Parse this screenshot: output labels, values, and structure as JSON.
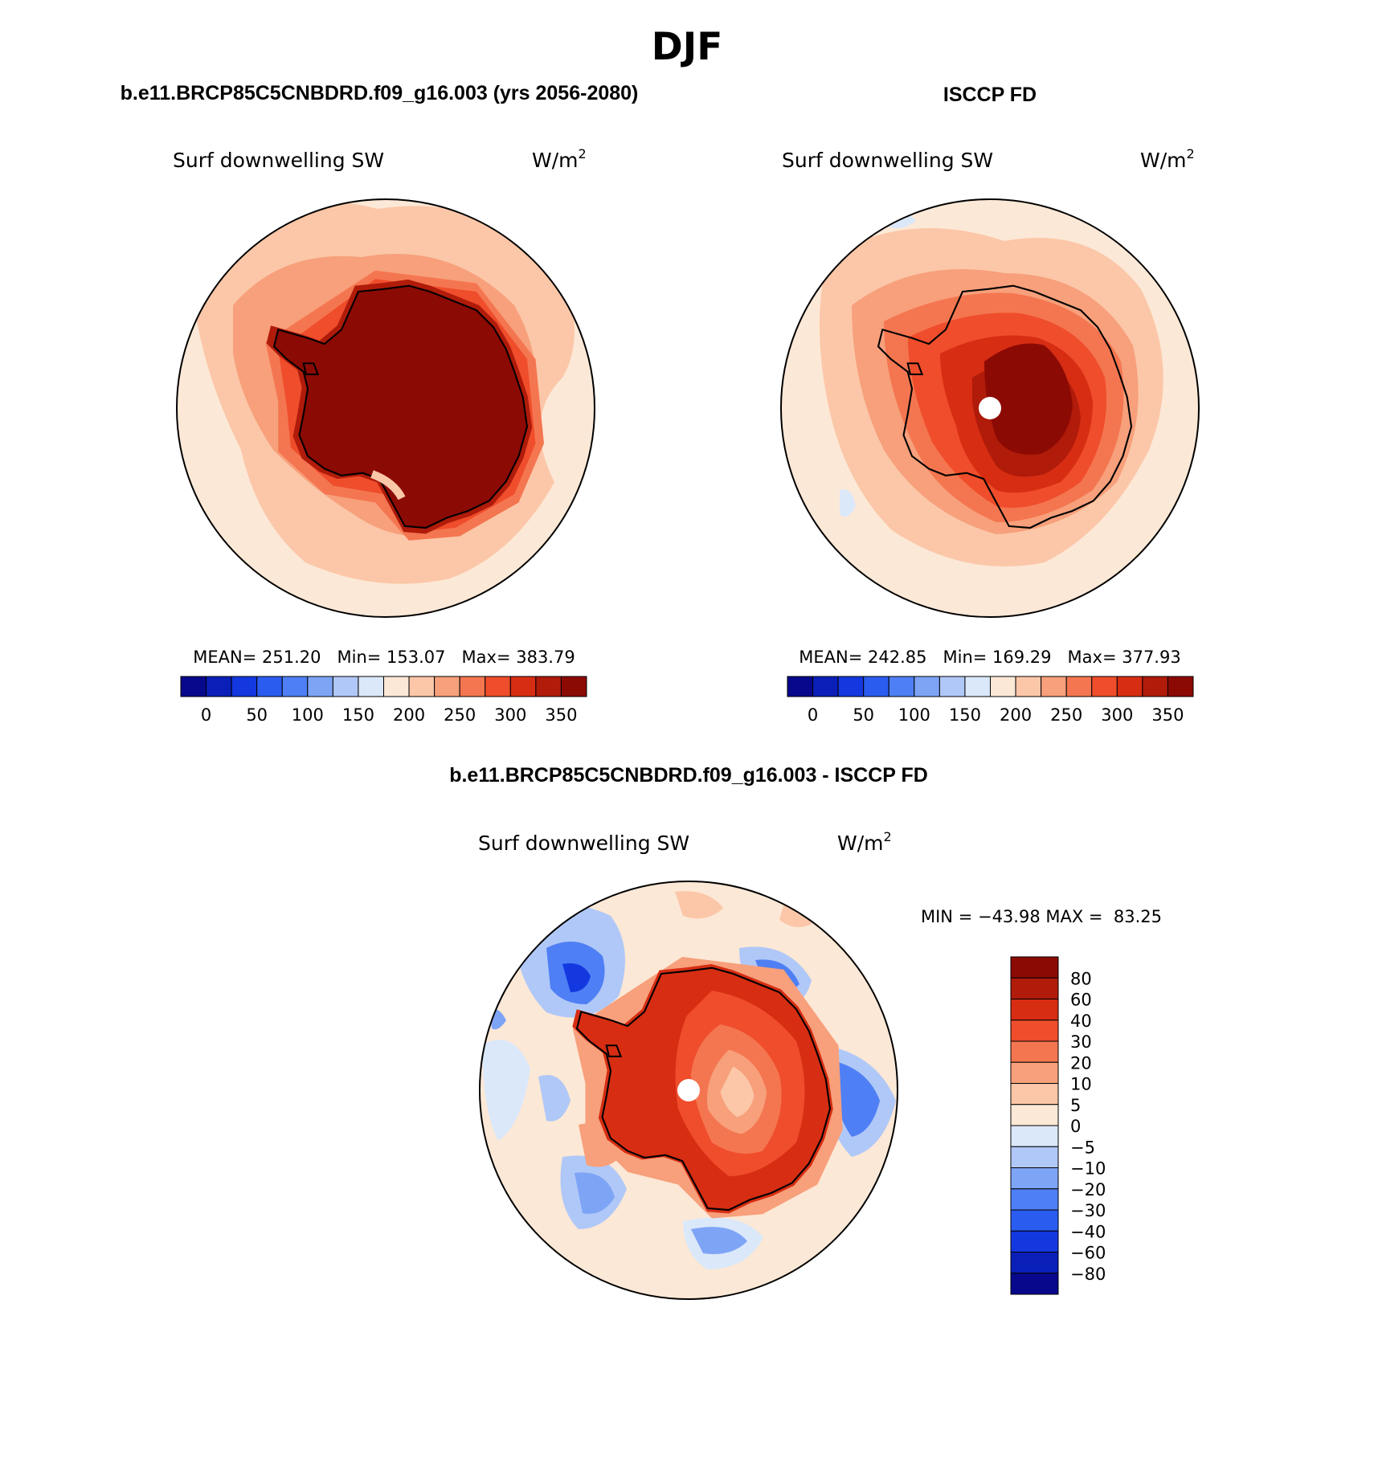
{
  "page": {
    "season": "DJF",
    "panel_titles": {
      "left": "b.e11.BRCP85C5CNBDRD.f09_g16.003 (yrs 2056-2080)",
      "right": "ISCCP FD",
      "diff": "b.e11.BRCP85C5CNBDRD.f09_g16.003 - ISCCP FD"
    }
  },
  "maps": [
    {
      "id": "model",
      "variable": "Surf downwelling SW",
      "units_base": "W/m",
      "units_exp": "2",
      "stats_text": "MEAN= 251.20   Min= 153.07   Max= 383.79"
    },
    {
      "id": "obs",
      "variable": "Surf downwelling SW",
      "units_base": "W/m",
      "units_exp": "2",
      "stats_text": "MEAN= 242.85   Min= 169.29   Max= 377.93"
    },
    {
      "id": "diff",
      "variable": "Surf downwelling SW",
      "units_base": "W/m",
      "units_exp": "2",
      "stats_text": "MIN = −43.98 MAX =  83.25"
    }
  ],
  "colorbar_abs": {
    "colors": [
      "#08088c",
      "#0a1fb8",
      "#1438e0",
      "#2a5cf0",
      "#4f7ff5",
      "#7ea4f6",
      "#b0c8f7",
      "#dbe8fa",
      "#fce8d6",
      "#fbc7a8",
      "#f7a07b",
      "#f47650",
      "#ef4d2b",
      "#d72d13",
      "#b01b0a",
      "#8c0a04"
    ],
    "labels": [
      "0",
      "50",
      "100",
      "150",
      "200",
      "250",
      "300",
      "350"
    ]
  },
  "colorbar_diff": {
    "colors": [
      "#8c0a04",
      "#b01b0a",
      "#d72d13",
      "#ef4d2b",
      "#f47650",
      "#f7a07b",
      "#fbc7a8",
      "#fce8d6",
      "#dbe8fa",
      "#b0c8f7",
      "#7ea4f6",
      "#4f7ff5",
      "#2a5cf0",
      "#1438e0",
      "#0a1fb8",
      "#08088c"
    ],
    "labels": [
      "80",
      "60",
      "40",
      "30",
      "20",
      "10",
      "5",
      "0",
      "−5",
      "−10",
      "−20",
      "−30",
      "−40",
      "−60",
      "−80"
    ]
  }
}
